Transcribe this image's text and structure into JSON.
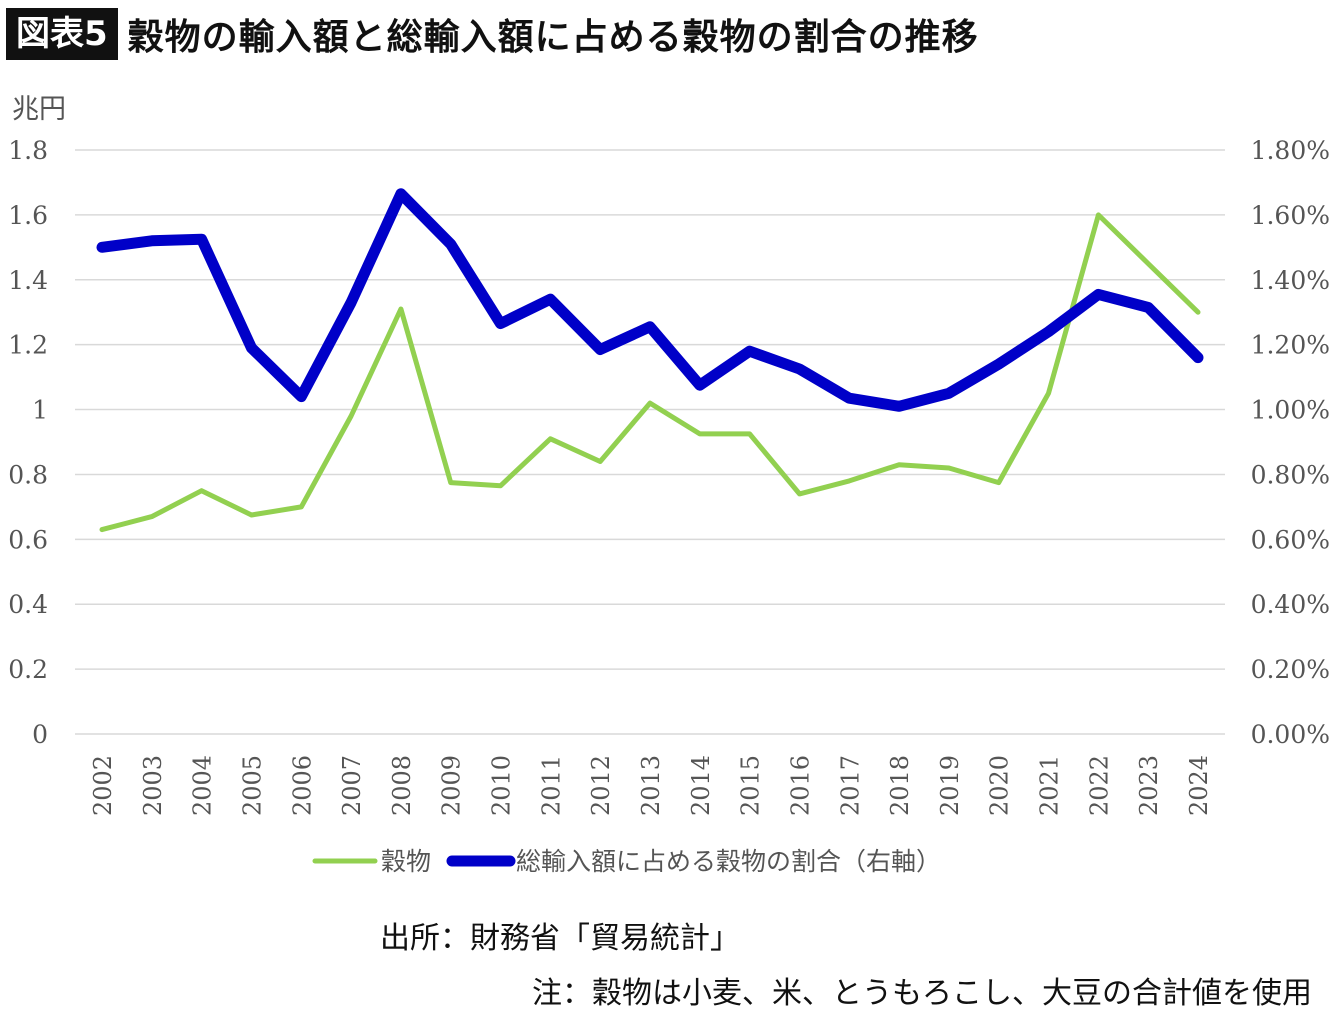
{
  "header": {
    "badge": "図表5",
    "title": "穀物の輸入額と総輸入額に占める穀物の割合の推移"
  },
  "footer": {
    "source": "出所：財務省「貿易統計」",
    "note": "注：穀物は小麦、米、とうもろこし、大豆の合計値を使用"
  },
  "chart_data": {
    "type": "line",
    "title": "穀物の輸入額と総輸入額に占める穀物の割合の推移",
    "ylabel_left": "兆円",
    "x": [
      "2002",
      "2003",
      "2004",
      "2005",
      "2006",
      "2007",
      "2008",
      "2009",
      "2010",
      "2011",
      "2012",
      "2013",
      "2014",
      "2015",
      "2016",
      "2017",
      "2018",
      "2019",
      "2020",
      "2021",
      "2022",
      "2023",
      "2024"
    ],
    "y_left_ticks": [
      "0",
      "0.2",
      "0.4",
      "0.6",
      "0.8",
      "1",
      "1.2",
      "1.4",
      "1.6",
      "1.8"
    ],
    "y_right_ticks": [
      "0.00%",
      "0.20%",
      "0.40%",
      "0.60%",
      "0.80%",
      "1.00%",
      "1.20%",
      "1.40%",
      "1.60%",
      "1.80%"
    ],
    "ylim_left": [
      0,
      1.8
    ],
    "ylim_right": [
      0,
      1.8
    ],
    "grid": true,
    "legend_position": "bottom",
    "series": [
      {
        "name": "穀物",
        "axis": "left",
        "color": "#92d050",
        "values": [
          0.63,
          0.67,
          0.75,
          0.675,
          0.7,
          0.98,
          1.31,
          0.775,
          0.765,
          0.91,
          0.84,
          1.02,
          0.925,
          0.925,
          0.74,
          0.78,
          0.83,
          0.82,
          0.775,
          1.05,
          1.6,
          1.45,
          1.3
        ]
      },
      {
        "name": "総輸入額に占める穀物の割合（右軸）",
        "axis": "right",
        "color": "#0000c8",
        "values": [
          1.5,
          1.52,
          1.525,
          1.19,
          1.04,
          1.33,
          1.665,
          1.51,
          1.265,
          1.34,
          1.185,
          1.255,
          1.075,
          1.18,
          1.125,
          1.035,
          1.01,
          1.05,
          1.14,
          1.24,
          1.355,
          1.315,
          1.16
        ]
      }
    ]
  }
}
